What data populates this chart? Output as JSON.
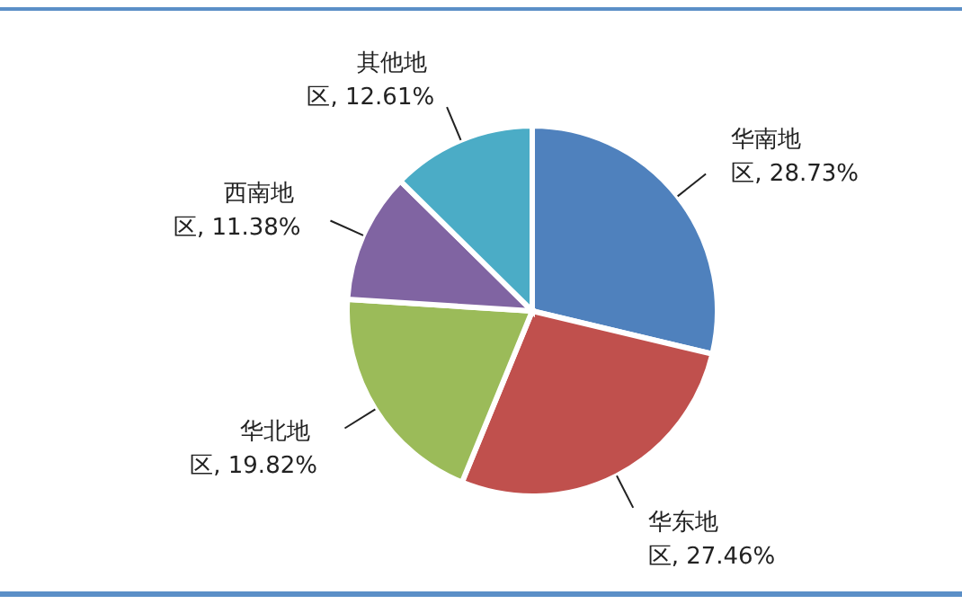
{
  "chart_data": {
    "type": "pie",
    "categories": [
      "华南地区",
      "华东地区",
      "华北地区",
      "西南地区",
      "其他地区"
    ],
    "values": [
      28.73,
      27.46,
      19.82,
      11.38,
      12.61
    ],
    "value_labels": [
      "28.73%",
      "27.46%",
      "19.82%",
      "11.38%",
      "12.61%"
    ],
    "colors": [
      "#4f81bd",
      "#c0504d",
      "#9bbb59",
      "#8064a2",
      "#4bacc6"
    ],
    "legend": false
  }
}
